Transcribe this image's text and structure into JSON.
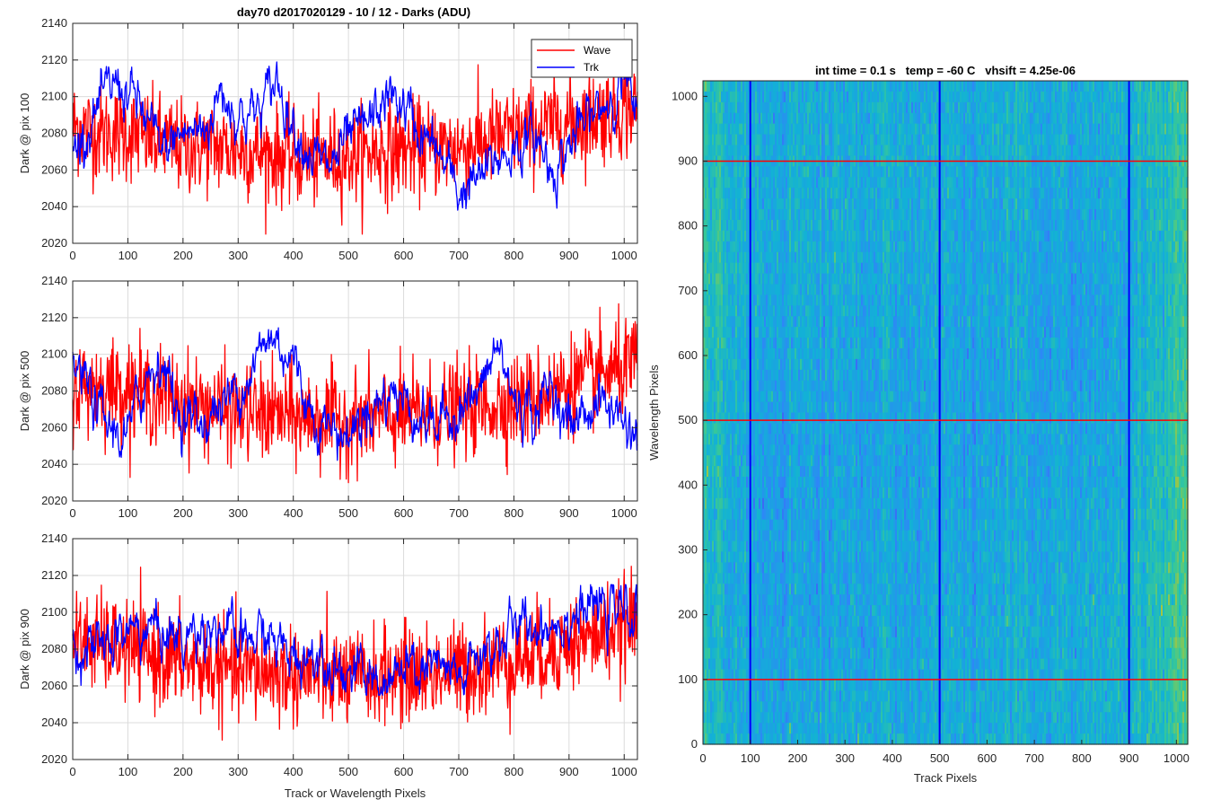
{
  "figure": {
    "left_panel_title": "day70 d2017020129 - 10 / 12 - Darks (ADU)",
    "right_panel_title": "int time = 0.1 s   temp = -60 C   vhsift = 4.25e-06"
  },
  "chart_data": [
    {
      "type": "line",
      "ylabel": "Dark @ pix 100",
      "xlabel": "",
      "xlim": [
        0,
        1024
      ],
      "ylim": [
        2020,
        2140
      ],
      "x_ticks": [
        0,
        100,
        200,
        300,
        400,
        500,
        600,
        700,
        800,
        900,
        1000
      ],
      "y_ticks": [
        2020,
        2040,
        2060,
        2080,
        2100,
        2120,
        2140
      ],
      "grid": true,
      "legend": {
        "placement": "top-right",
        "entries": [
          "Wave",
          "Trk"
        ]
      },
      "series": [
        {
          "name": "Wave",
          "color": "#ff0000",
          "trend": [
            [
              0,
              2084
            ],
            [
              50,
              2080
            ],
            [
              100,
              2080
            ],
            [
              150,
              2076
            ],
            [
              200,
              2072
            ],
            [
              250,
              2073
            ],
            [
              300,
              2071
            ],
            [
              350,
              2069
            ],
            [
              400,
              2067
            ],
            [
              450,
              2066
            ],
            [
              500,
              2068
            ],
            [
              550,
              2070
            ],
            [
              600,
              2071
            ],
            [
              650,
              2072
            ],
            [
              700,
              2072
            ],
            [
              750,
              2076
            ],
            [
              800,
              2080
            ],
            [
              850,
              2083
            ],
            [
              900,
              2086
            ],
            [
              950,
              2090
            ],
            [
              1024,
              2094
            ]
          ],
          "noise": 13,
          "range": [
            2025,
            2133
          ]
        },
        {
          "name": "Trk",
          "color": "#0000ff",
          "trend": [
            [
              0,
              2070
            ],
            [
              40,
              2090
            ],
            [
              80,
              2108
            ],
            [
              120,
              2095
            ],
            [
              160,
              2070
            ],
            [
              200,
              2080
            ],
            [
              240,
              2082
            ],
            [
              270,
              2104
            ],
            [
              300,
              2090
            ],
            [
              340,
              2092
            ],
            [
              370,
              2110
            ],
            [
              400,
              2086
            ],
            [
              430,
              2070
            ],
            [
              460,
              2060
            ],
            [
              500,
              2075
            ],
            [
              540,
              2086
            ],
            [
              570,
              2100
            ],
            [
              600,
              2095
            ],
            [
              630,
              2080
            ],
            [
              660,
              2070
            ],
            [
              700,
              2048
            ],
            [
              740,
              2055
            ],
            [
              770,
              2066
            ],
            [
              800,
              2072
            ],
            [
              840,
              2078
            ],
            [
              870,
              2060
            ],
            [
              920,
              2082
            ],
            [
              960,
              2095
            ],
            [
              1000,
              2110
            ],
            [
              1024,
              2082
            ]
          ],
          "noise": 5,
          "range": [
            2037,
            2120
          ]
        }
      ]
    },
    {
      "type": "line",
      "ylabel": "Dark @ pix 500",
      "xlabel": "",
      "xlim": [
        0,
        1024
      ],
      "ylim": [
        2020,
        2140
      ],
      "x_ticks": [
        0,
        100,
        200,
        300,
        400,
        500,
        600,
        700,
        800,
        900,
        1000
      ],
      "y_ticks": [
        2020,
        2040,
        2060,
        2080,
        2100,
        2120,
        2140
      ],
      "grid": true,
      "series": [
        {
          "name": "Wave",
          "color": "#ff0000",
          "trend": [
            [
              0,
              2082
            ],
            [
              100,
              2082
            ],
            [
              150,
              2078
            ],
            [
              200,
              2074
            ],
            [
              300,
              2068
            ],
            [
              400,
              2066
            ],
            [
              500,
              2064
            ],
            [
              600,
              2066
            ],
            [
              700,
              2070
            ],
            [
              800,
              2074
            ],
            [
              850,
              2078
            ],
            [
              900,
              2084
            ],
            [
              950,
              2088
            ],
            [
              1024,
              2094
            ]
          ],
          "noise": 13,
          "range": [
            2030,
            2136
          ]
        },
        {
          "name": "Trk",
          "color": "#0000ff",
          "trend": [
            [
              0,
              2095
            ],
            [
              30,
              2080
            ],
            [
              60,
              2060
            ],
            [
              100,
              2055
            ],
            [
              130,
              2085
            ],
            [
              160,
              2100
            ],
            [
              190,
              2070
            ],
            [
              230,
              2062
            ],
            [
              280,
              2075
            ],
            [
              320,
              2090
            ],
            [
              360,
              2110
            ],
            [
              400,
              2098
            ],
            [
              430,
              2070
            ],
            [
              470,
              2060
            ],
            [
              500,
              2055
            ],
            [
              540,
              2072
            ],
            [
              580,
              2080
            ],
            [
              620,
              2070
            ],
            [
              660,
              2060
            ],
            [
              700,
              2072
            ],
            [
              740,
              2078
            ],
            [
              770,
              2105
            ],
            [
              800,
              2075
            ],
            [
              840,
              2068
            ],
            [
              870,
              2085
            ],
            [
              900,
              2060
            ],
            [
              950,
              2075
            ],
            [
              990,
              2068
            ],
            [
              1024,
              2055
            ]
          ],
          "noise": 5,
          "range": [
            2040,
            2120
          ]
        }
      ]
    },
    {
      "type": "line",
      "ylabel": "Dark @ pix 900",
      "xlabel": "Track or Wavelength Pixels",
      "xlim": [
        0,
        1024
      ],
      "ylim": [
        2020,
        2140
      ],
      "x_ticks": [
        0,
        100,
        200,
        300,
        400,
        500,
        600,
        700,
        800,
        900,
        1000
      ],
      "y_ticks": [
        2020,
        2040,
        2060,
        2080,
        2100,
        2120,
        2140
      ],
      "grid": true,
      "series": [
        {
          "name": "Wave",
          "color": "#ff0000",
          "trend": [
            [
              0,
              2085
            ],
            [
              100,
              2080
            ],
            [
              150,
              2076
            ],
            [
              200,
              2072
            ],
            [
              300,
              2068
            ],
            [
              400,
              2066
            ],
            [
              500,
              2064
            ],
            [
              600,
              2066
            ],
            [
              700,
              2068
            ],
            [
              800,
              2074
            ],
            [
              850,
              2078
            ],
            [
              900,
              2083
            ],
            [
              950,
              2087
            ],
            [
              1024,
              2094
            ]
          ],
          "noise": 13,
          "range": [
            2030,
            2135
          ]
        },
        {
          "name": "Trk",
          "color": "#0000ff",
          "trend": [
            [
              0,
              2085
            ],
            [
              40,
              2078
            ],
            [
              100,
              2090
            ],
            [
              150,
              2092
            ],
            [
              200,
              2085
            ],
            [
              250,
              2096
            ],
            [
              300,
              2082
            ],
            [
              350,
              2088
            ],
            [
              400,
              2075
            ],
            [
              450,
              2080
            ],
            [
              500,
              2068
            ],
            [
              550,
              2062
            ],
            [
              600,
              2066
            ],
            [
              650,
              2070
            ],
            [
              700,
              2062
            ],
            [
              750,
              2080
            ],
            [
              800,
              2090
            ],
            [
              850,
              2094
            ],
            [
              900,
              2098
            ],
            [
              950,
              2102
            ],
            [
              1024,
              2100
            ]
          ],
          "noise": 5,
          "range": [
            2055,
            2115
          ]
        }
      ]
    },
    {
      "type": "heatmap",
      "title": "int time = 0.1 s   temp = -60 C   vhsift = 4.25e-06",
      "xlabel": "Track Pixels",
      "ylabel": "Wavelength Pixels",
      "xlim": [
        0,
        1024
      ],
      "ylim": [
        0,
        1024
      ],
      "x_ticks": [
        0,
        100,
        200,
        300,
        400,
        500,
        600,
        700,
        800,
        900,
        1000
      ],
      "y_ticks": [
        0,
        100,
        200,
        300,
        400,
        500,
        600,
        700,
        800,
        900,
        1000
      ],
      "colormap": "parula",
      "vertical_markers": {
        "x": [
          100,
          500,
          900
        ],
        "color": "#0000ff"
      },
      "horizontal_markers": {
        "y": [
          100,
          500,
          900
        ],
        "color": "#ff0000"
      }
    }
  ]
}
